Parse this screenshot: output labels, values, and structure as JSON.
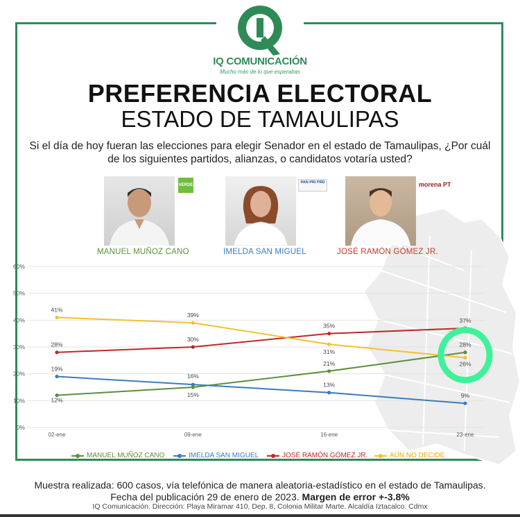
{
  "brand": {
    "name": "IQ COMUNICACIÓN",
    "tagline": "Mucho más de lo que esperabas",
    "color": "#2e8b57"
  },
  "header": {
    "title": "PREFERENCIA ELECTORAL",
    "subtitle": "ESTADO DE TAMAULIPAS",
    "question": "Si el día de hoy fueran las elecciones para elegir Senador en el estado de Tamaulipas, ¿Por cuál de los siguientes partidos, alianzas, o candidatos votaría usted?"
  },
  "candidates": [
    {
      "name": "MANUEL MUÑOZ CANO",
      "party": "VERDE",
      "color": "#5b8f3a"
    },
    {
      "name": "IMELDA SAN MIGUEL",
      "party": "PAN PRI PRD",
      "color": "#3a7bbf"
    },
    {
      "name": "JOSÉ RAMÓN GÓMEZ JR.",
      "party": "morena PT",
      "color": "#c0392b"
    }
  ],
  "chart_data": {
    "type": "line",
    "x": [
      "02-ene",
      "09-ene",
      "16-ene",
      "23-ene"
    ],
    "y_ticks": [
      "0%",
      "10%",
      "20%",
      "30%",
      "40%",
      "50%",
      "60%"
    ],
    "ylim": [
      0,
      60
    ],
    "grid": true,
    "legend_position": "bottom",
    "series": [
      {
        "name": "MANUEL MUÑOZ CANO",
        "color": "#5b8f3a",
        "values": [
          12,
          15,
          21,
          28
        ],
        "labels": [
          "12%",
          "15%",
          "21%",
          "28%"
        ]
      },
      {
        "name": "IMELDA SAN MIGUEL",
        "color": "#3a7bbf",
        "values": [
          19,
          16,
          13,
          9
        ],
        "labels": [
          "19%",
          "16%",
          "13%",
          "9%"
        ]
      },
      {
        "name": "JOSÉ RAMÓN GÓMEZ JR.",
        "color": "#c0262b",
        "values": [
          28,
          30,
          35,
          37
        ],
        "labels": [
          "28%",
          "30%",
          "35%",
          "37%"
        ]
      },
      {
        "name": "AÚN NO DECIDE",
        "color": "#f2c12e",
        "values": [
          41,
          39,
          31,
          26
        ],
        "labels": [
          "41%",
          "39%",
          "31%",
          "26%"
        ]
      }
    ],
    "highlight_color": "#3ef29a"
  },
  "footer": {
    "sample": "Muestra realizada: 600 casos, vía telefónica de manera aleatoria-estadístico en el estado de Tamaulipas. Fecha del publicación 29 de enero de 2023.",
    "margin": "Margen de error +-3.8%",
    "address": "IQ Comunicación. Dirección: Playa Miramar 410, Dep. 8, Colonia Militar Marte. Alcaldía Iztacalco. Cdmx"
  }
}
